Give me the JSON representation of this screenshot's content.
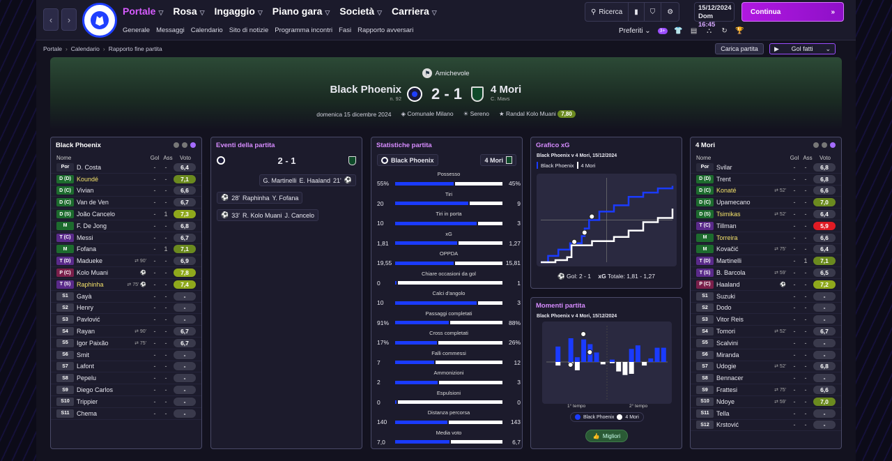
{
  "topbar": {
    "nav_back": "‹",
    "nav_fwd": "›",
    "menu": [
      "Portale",
      "Rosa",
      "Ingaggio",
      "Piano gara",
      "Società",
      "Carriera"
    ],
    "submenu": [
      "Generale",
      "Messaggi",
      "Calendario",
      "Sito di notizie",
      "Programma incontri",
      "Fasi",
      "Rapporto avversari"
    ],
    "search_label": "Ricerca",
    "date_line": "15/12/2024",
    "day": "Dom",
    "time": "16:45",
    "continue_label": "Continua",
    "favorites_label": "Preferiti",
    "badge": "3+"
  },
  "breadcrumb": [
    "Portale",
    "Calendario",
    "Rapporto fine partita"
  ],
  "actions": {
    "load_match": "Carica partita",
    "goals_filter": "Gol fatti"
  },
  "match": {
    "competition": "Amichevole",
    "home": "Black Phoenix",
    "home_sub": "n. 92",
    "away": "4 Mori",
    "away_sub": "C. Mavs",
    "score": "2 - 1",
    "date": "domenica 15 dicembre 2024",
    "stadium": "Comunale Milano",
    "weather": "Sereno",
    "motm": "Randal Kolo Muani",
    "motm_rating": "7,80"
  },
  "colors": {
    "good": "#6b8a1f",
    "great": "#8fa81c",
    "bad": "#e01b24",
    "neutral": "#3a3a4c",
    "home": "#1a3bff",
    "accent": "#a56cff"
  },
  "home_panel": {
    "title": "Black Phoenix",
    "cols": {
      "name": "Nome",
      "goals": "Gol",
      "assists": "Ass",
      "rating": "Voto"
    },
    "players": [
      {
        "pos": "Por",
        "name": "D. Costa",
        "ev": "",
        "g": "-",
        "a": "-",
        "v": "6,4"
      },
      {
        "pos": "D (D)",
        "name": "Koundé",
        "ev": "",
        "g": "-",
        "a": "-",
        "v": "7,1",
        "hl": true
      },
      {
        "pos": "D (C)",
        "name": "Vivian",
        "ev": "",
        "g": "-",
        "a": "-",
        "v": "6,6"
      },
      {
        "pos": "D (C)",
        "name": "Van de Ven",
        "ev": "",
        "g": "-",
        "a": "-",
        "v": "6,7"
      },
      {
        "pos": "D (S)",
        "name": "João Cancelo",
        "ev": "",
        "g": "-",
        "a": "1",
        "v": "7,3"
      },
      {
        "pos": "M",
        "name": "F. De Jong",
        "ev": "",
        "g": "-",
        "a": "-",
        "v": "6,8"
      },
      {
        "pos": "T (C)",
        "name": "Messi",
        "ev": "",
        "g": "-",
        "a": "-",
        "v": "6,7"
      },
      {
        "pos": "M",
        "name": "Fofana",
        "ev": "",
        "g": "-",
        "a": "1",
        "v": "7,1"
      },
      {
        "pos": "T (D)",
        "name": "Madueke",
        "ev": "⇄ 90'",
        "g": "-",
        "a": "-",
        "v": "6,9"
      },
      {
        "pos": "P (C)",
        "name": "Kolo Muani",
        "ev": "⚽",
        "g": "-",
        "a": "-",
        "v": "7,8"
      },
      {
        "pos": "T (S)",
        "name": "Raphinha",
        "ev": "⇄ 75'  ⚽",
        "g": "-",
        "a": "-",
        "v": "7,4",
        "hl": true
      },
      {
        "pos": "S1",
        "name": "Gayà",
        "ev": "",
        "g": "-",
        "a": "-",
        "v": "-"
      },
      {
        "pos": "S2",
        "name": "Henry",
        "ev": "",
        "g": "-",
        "a": "-",
        "v": "-"
      },
      {
        "pos": "S3",
        "name": "Pavlović",
        "ev": "",
        "g": "-",
        "a": "-",
        "v": "-"
      },
      {
        "pos": "S4",
        "name": "Rayan",
        "ev": "⇄ 90'",
        "g": "-",
        "a": "-",
        "v": "6,7"
      },
      {
        "pos": "S5",
        "name": "Igor Paixão",
        "ev": "⇄ 75'",
        "g": "-",
        "a": "-",
        "v": "6,7"
      },
      {
        "pos": "S6",
        "name": "Smit",
        "ev": "",
        "g": "-",
        "a": "-",
        "v": "-"
      },
      {
        "pos": "S7",
        "name": "Lafont",
        "ev": "",
        "g": "-",
        "a": "-",
        "v": "-"
      },
      {
        "pos": "S8",
        "name": "Pepelu",
        "ev": "",
        "g": "-",
        "a": "-",
        "v": "-"
      },
      {
        "pos": "S9",
        "name": "Diego Carlos",
        "ev": "",
        "g": "-",
        "a": "-",
        "v": "-"
      },
      {
        "pos": "S10",
        "name": "Trippier",
        "ev": "",
        "g": "-",
        "a": "-",
        "v": "-"
      },
      {
        "pos": "S11",
        "name": "Chema",
        "ev": "",
        "g": "-",
        "a": "-",
        "v": "-"
      }
    ]
  },
  "events_panel": {
    "title": "Eventi della partita",
    "score": "2 - 1",
    "events": [
      {
        "side": "away",
        "minute": "21'",
        "scorer": "E. Haaland",
        "assist": "G. Martinelli"
      },
      {
        "side": "home",
        "minute": "28'",
        "scorer": "Raphinha",
        "assist": "Y. Fofana"
      },
      {
        "side": "home",
        "minute": "33'",
        "scorer": "R. Kolo Muani",
        "assist": "J. Cancelo"
      }
    ]
  },
  "stats_panel": {
    "title": "Statistiche partita",
    "home": "Black Phoenix",
    "away": "4 Mori",
    "rows": [
      {
        "label": "Possesso",
        "h": "55%",
        "a": "45%",
        "hv": 55,
        "av": 45
      },
      {
        "label": "Tiri",
        "h": "20",
        "a": "9",
        "hv": 20,
        "av": 9
      },
      {
        "label": "Tiri in porta",
        "h": "10",
        "a": "3",
        "hv": 10,
        "av": 3
      },
      {
        "label": "xG",
        "h": "1,81",
        "a": "1,27",
        "hv": 1.81,
        "av": 1.27
      },
      {
        "label": "OPPDA",
        "h": "19,55",
        "a": "15,81",
        "hv": 19.55,
        "av": 15.81
      },
      {
        "label": "Chiare occasioni da gol",
        "h": "0",
        "a": "1",
        "hv": 0,
        "av": 1
      },
      {
        "label": "Calci d'angolo",
        "h": "10",
        "a": "3",
        "hv": 10,
        "av": 3
      },
      {
        "label": "Passaggi completati",
        "h": "91%",
        "a": "88%",
        "hv": 91,
        "av": 88
      },
      {
        "label": "Cross completati",
        "h": "17%",
        "a": "26%",
        "hv": 17,
        "av": 26
      },
      {
        "label": "Falli commessi",
        "h": "7",
        "a": "12",
        "hv": 7,
        "av": 12
      },
      {
        "label": "Ammonizioni",
        "h": "2",
        "a": "3",
        "hv": 2,
        "av": 3
      },
      {
        "label": "Espulsioni",
        "h": "0",
        "a": "0",
        "hv": 0,
        "av": 0
      },
      {
        "label": "Distanza percorsa",
        "h": "140",
        "a": "143",
        "hv": 140,
        "av": 143
      },
      {
        "label": "Media voto",
        "h": "7,0",
        "a": "6,7",
        "hv": 7.0,
        "av": 6.7
      }
    ]
  },
  "xg_panel": {
    "title": "Grafico xG",
    "subtitle": "Black Phoenix v 4 Mori, 15/12/2024",
    "legend_home": "Black Phoenix",
    "legend_away": "4 Mori",
    "footer_goals": "Gol: 2 - 1",
    "footer_xg": "Totale: 1,81 - 1,27",
    "xg_label": "xG"
  },
  "chart_data": [
    {
      "type": "line",
      "title": "Grafico xG",
      "series": [
        {
          "name": "Black Phoenix",
          "x": [
            0,
            5,
            12,
            20,
            28,
            30,
            33,
            40,
            50,
            60,
            70,
            80,
            90
          ],
          "y": [
            0,
            0.15,
            0.3,
            0.45,
            0.62,
            0.8,
            1.0,
            1.2,
            1.35,
            1.55,
            1.65,
            1.75,
            1.81
          ]
        },
        {
          "name": "4 Mori",
          "x": [
            0,
            10,
            18,
            21,
            35,
            50,
            60,
            70,
            80,
            90
          ],
          "y": [
            0,
            0.05,
            0.12,
            0.4,
            0.5,
            0.6,
            0.75,
            0.95,
            1.05,
            1.27
          ]
        }
      ],
      "goals_text": "Gol: 2 - 1",
      "total_text": "Totale: 1,81 - 1,27"
    },
    {
      "type": "bar",
      "title": "Momenti partita",
      "series": [
        {
          "name": "Black Phoenix",
          "values": [
            0,
            0.65,
            0,
            1,
            0.2,
            0.95,
            0.75,
            0.4,
            0,
            0.1,
            0,
            0,
            0.55,
            0.7,
            0,
            0.15,
            0.6,
            0.6
          ]
        },
        {
          "name": "4 Mori",
          "values": [
            0,
            0.15,
            0,
            0.1,
            0.35,
            0,
            0,
            0,
            0.1,
            0.05,
            0.4,
            0.55,
            0.5,
            0,
            0.15,
            0,
            0,
            0
          ]
        }
      ],
      "x_labels": [
        "1° tempo",
        "2° tempo"
      ]
    }
  ],
  "moments_panel": {
    "title": "Momenti partita",
    "subtitle": "Black Phoenix v 4 Mori, 15/12/2024",
    "half1": "1° tempo",
    "half2": "2° tempo",
    "legend_home": "Black Phoenix",
    "legend_away": "4 Mori",
    "best_button": "Migliori"
  },
  "away_panel": {
    "title": "4 Mori",
    "cols": {
      "name": "Nome",
      "goals": "Gol",
      "assists": "Ass",
      "rating": "Voto"
    },
    "players": [
      {
        "pos": "Por",
        "name": "Svilar",
        "ev": "",
        "g": "-",
        "a": "-",
        "v": "6,8"
      },
      {
        "pos": "D (D)",
        "name": "Trent",
        "ev": "",
        "g": "-",
        "a": "-",
        "v": "6,8"
      },
      {
        "pos": "D (C)",
        "name": "Konaté",
        "ev": "⇄ 52'",
        "g": "-",
        "a": "-",
        "v": "6,6",
        "hl": true
      },
      {
        "pos": "D (C)",
        "name": "Upamecano",
        "ev": "",
        "g": "-",
        "a": "-",
        "v": "7,0"
      },
      {
        "pos": "D (S)",
        "name": "Tsimikas",
        "ev": "⇄ 52'",
        "g": "-",
        "a": "-",
        "v": "6,4",
        "hl": true
      },
      {
        "pos": "T (C)",
        "name": "Tillman",
        "ev": "",
        "g": "-",
        "a": "-",
        "v": "5,9"
      },
      {
        "pos": "M",
        "name": "Torreira",
        "ev": "",
        "g": "-",
        "a": "-",
        "v": "6,6",
        "hl": true
      },
      {
        "pos": "M",
        "name": "Kovačić",
        "ev": "⇄ 75'",
        "g": "-",
        "a": "-",
        "v": "6,4"
      },
      {
        "pos": "T (D)",
        "name": "Martinelli",
        "ev": "",
        "g": "-",
        "a": "1",
        "v": "7,1"
      },
      {
        "pos": "T (S)",
        "name": "B. Barcola",
        "ev": "⇄ 59'",
        "g": "-",
        "a": "-",
        "v": "6,5"
      },
      {
        "pos": "P (C)",
        "name": "Haaland",
        "ev": "⚽",
        "g": "-",
        "a": "-",
        "v": "7,2"
      },
      {
        "pos": "S1",
        "name": "Suzuki",
        "ev": "",
        "g": "-",
        "a": "-",
        "v": "-"
      },
      {
        "pos": "S2",
        "name": "Dodo",
        "ev": "",
        "g": "-",
        "a": "-",
        "v": "-"
      },
      {
        "pos": "S3",
        "name": "Vitor Reis",
        "ev": "",
        "g": "-",
        "a": "-",
        "v": "-"
      },
      {
        "pos": "S4",
        "name": "Tomori",
        "ev": "⇄ 52'",
        "g": "-",
        "a": "-",
        "v": "6,7"
      },
      {
        "pos": "S5",
        "name": "Scalvini",
        "ev": "",
        "g": "-",
        "a": "-",
        "v": "-"
      },
      {
        "pos": "S6",
        "name": "Miranda",
        "ev": "",
        "g": "-",
        "a": "-",
        "v": "-"
      },
      {
        "pos": "S7",
        "name": "Udogie",
        "ev": "⇄ 52'",
        "g": "-",
        "a": "-",
        "v": "6,8"
      },
      {
        "pos": "S8",
        "name": "Bennacer",
        "ev": "",
        "g": "-",
        "a": "-",
        "v": "-"
      },
      {
        "pos": "S9",
        "name": "Frattesi",
        "ev": "⇄ 75'",
        "g": "-",
        "a": "-",
        "v": "6,6"
      },
      {
        "pos": "S10",
        "name": "Ndoye",
        "ev": "⇄ 59'",
        "g": "-",
        "a": "-",
        "v": "7,0"
      },
      {
        "pos": "S11",
        "name": "Tella",
        "ev": "",
        "g": "-",
        "a": "-",
        "v": "-"
      },
      {
        "pos": "S12",
        "name": "Krstović",
        "ev": "",
        "g": "-",
        "a": "-",
        "v": "-"
      }
    ]
  }
}
